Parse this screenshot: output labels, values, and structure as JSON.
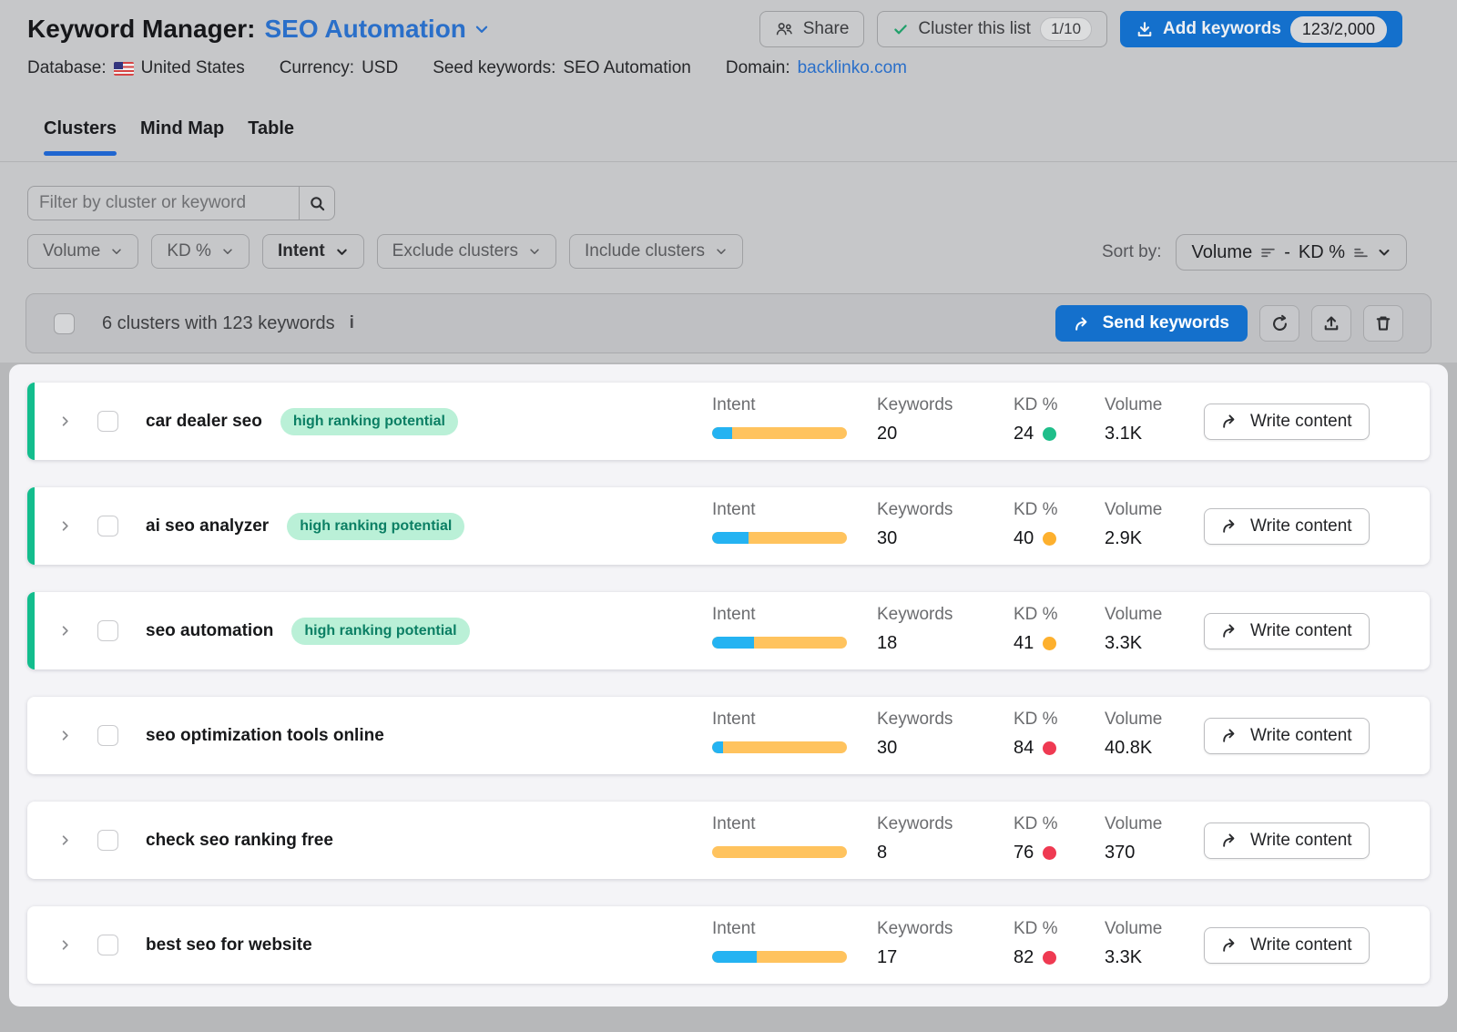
{
  "header": {
    "title_prefix": "Keyword Manager:",
    "list_name": "SEO Automation",
    "buttons": {
      "share": "Share",
      "cluster_this_list": "Cluster this list",
      "cluster_quota": "1/10",
      "add_keywords": "Add keywords",
      "add_keywords_quota": "123/2,000"
    },
    "meta": {
      "database_label": "Database:",
      "database_value": "United States",
      "currency_label": "Currency:",
      "currency_value": "USD",
      "seed_label": "Seed keywords:",
      "seed_value": "SEO Automation",
      "domain_label": "Domain:",
      "domain_value": "backlinko.com"
    }
  },
  "tabs": [
    {
      "label": "Clusters",
      "active": true
    },
    {
      "label": "Mind Map",
      "active": false
    },
    {
      "label": "Table",
      "active": false
    }
  ],
  "filters": {
    "search_placeholder": "Filter by cluster or keyword",
    "dropdowns": [
      "Volume",
      "KD %",
      "Intent",
      "Exclude clusters",
      "Include clusters"
    ],
    "sort_label": "Sort by:",
    "sort_primary": "Volume",
    "sort_separator": "-",
    "sort_secondary": "KD %"
  },
  "selection": {
    "summary": "6 clusters with 123 keywords",
    "info_glyph": "i",
    "send_keywords": "Send keywords"
  },
  "columns": {
    "intent": "Intent",
    "keywords": "Keywords",
    "kd": "KD %",
    "volume": "Volume"
  },
  "labels": {
    "write_content": "Write content",
    "badge": "high ranking potential"
  },
  "icons": {
    "list_picker": "chevron-down",
    "share": "two-people",
    "cluster_this_list": "checkmark",
    "add_keywords": "download-into-tray",
    "search": "magnifier",
    "dropdown": "chevron-down",
    "sort_primary": "bars-descending",
    "sort_secondary": "bars-ascending",
    "send_keywords": "curved-arrow-right",
    "refresh": "circular-arrow",
    "export": "upload-from-tray",
    "delete": "trash-can",
    "row_expand": "chevron-right",
    "write_content": "curved-arrow-right"
  },
  "colors": {
    "accent_blue": "#1470cc",
    "link_blue": "#2a6fc9",
    "intent_blue": "#24b3f2",
    "intent_orange": "#ffc35e",
    "kd_green": "#1fbe8a",
    "kd_orange": "#fdb02e",
    "kd_red": "#ef3a52",
    "badge_bg": "#baf0d7",
    "badge_text": "#0b7f64",
    "edge_green": "#13bd8d"
  },
  "clusters": [
    {
      "name": "car dealer seo",
      "high_potential": true,
      "intent_blue_pct": 15,
      "keywords": "20",
      "kd": "24",
      "kd_color": "green",
      "volume": "3.1K"
    },
    {
      "name": "ai seo analyzer",
      "high_potential": true,
      "intent_blue_pct": 27,
      "keywords": "30",
      "kd": "40",
      "kd_color": "orange",
      "volume": "2.9K"
    },
    {
      "name": "seo automation",
      "high_potential": true,
      "intent_blue_pct": 31,
      "keywords": "18",
      "kd": "41",
      "kd_color": "orange",
      "volume": "3.3K"
    },
    {
      "name": "seo optimization tools online",
      "high_potential": false,
      "intent_blue_pct": 8,
      "keywords": "30",
      "kd": "84",
      "kd_color": "red",
      "volume": "40.8K"
    },
    {
      "name": "check seo ranking free",
      "high_potential": false,
      "intent_blue_pct": 0,
      "keywords": "8",
      "kd": "76",
      "kd_color": "red",
      "volume": "370"
    },
    {
      "name": "best seo for website",
      "high_potential": false,
      "intent_blue_pct": 33,
      "keywords": "17",
      "kd": "82",
      "kd_color": "red",
      "volume": "3.3K"
    }
  ]
}
